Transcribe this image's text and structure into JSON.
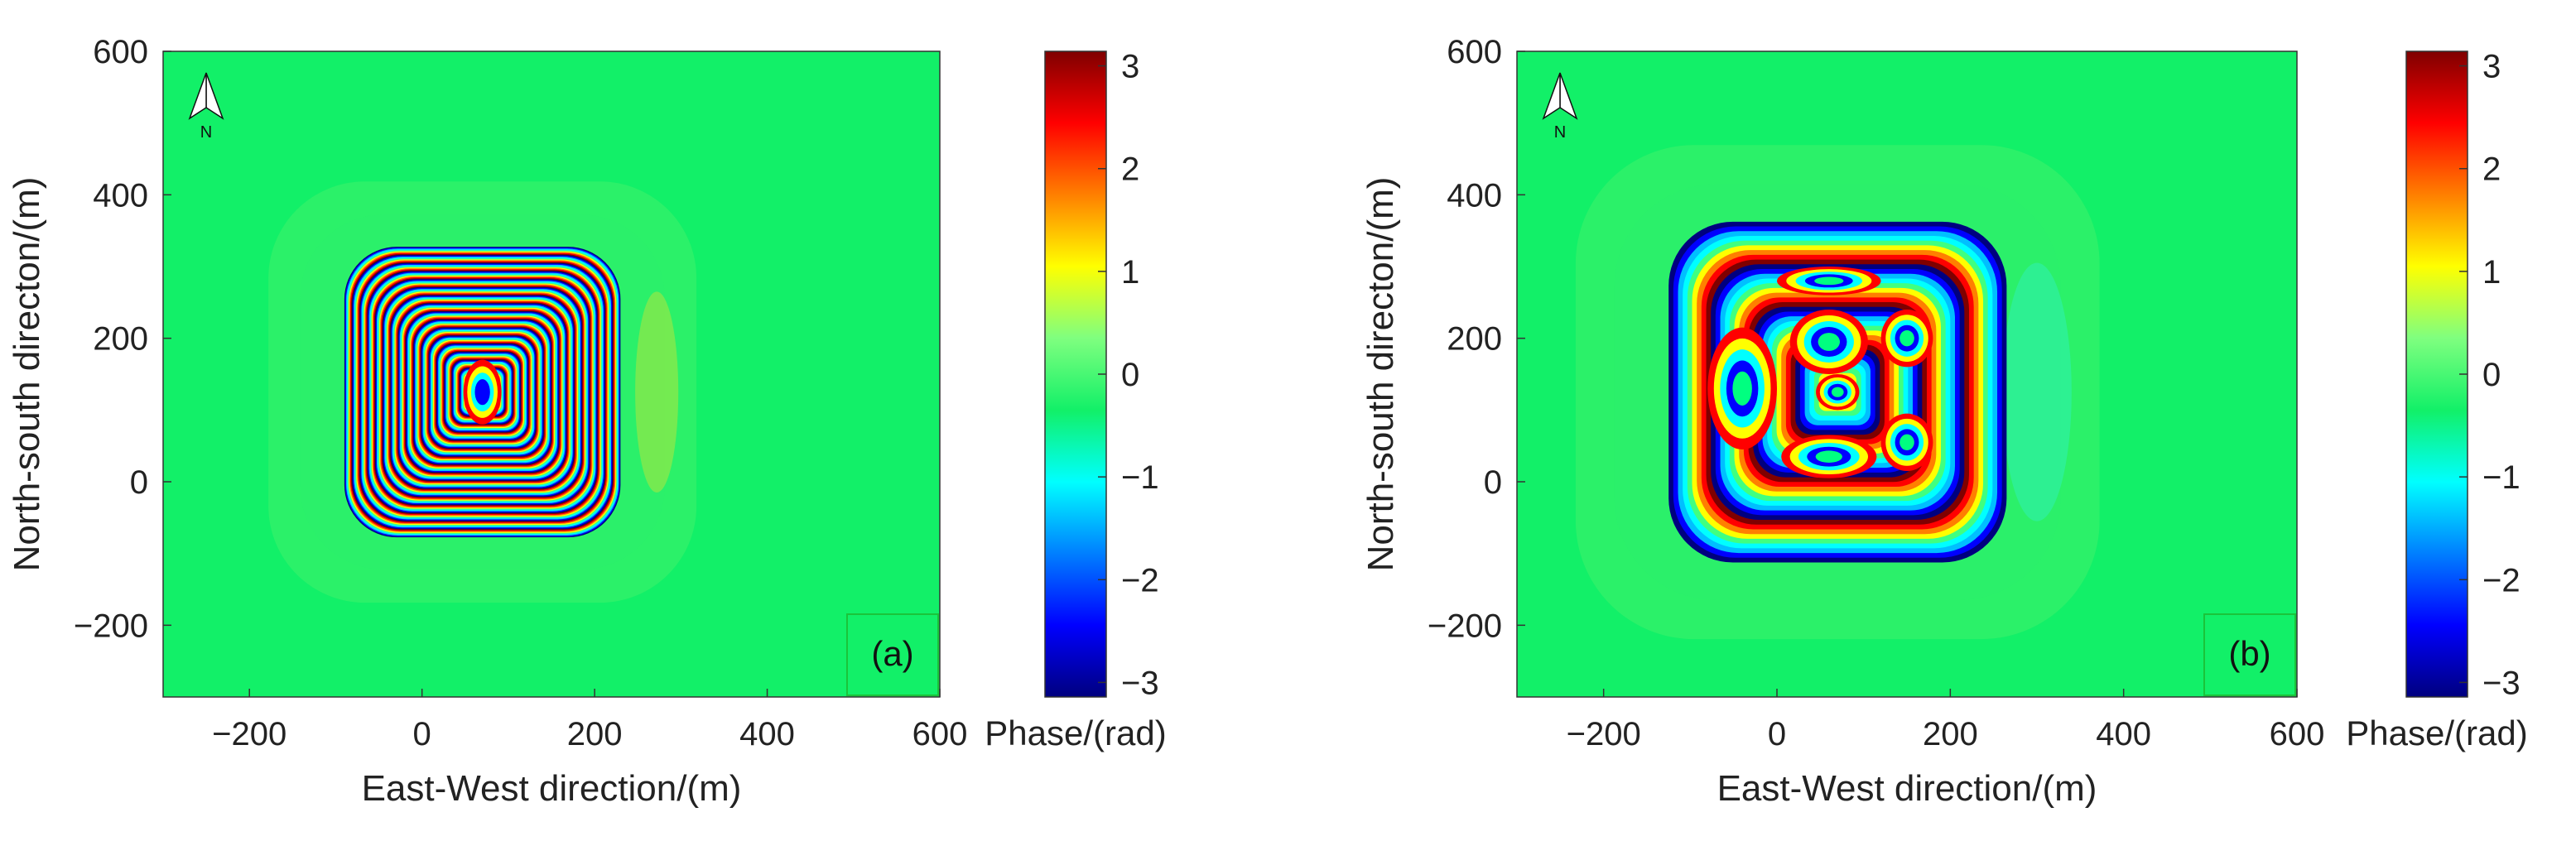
{
  "figure": {
    "colors": {
      "background_phase_zero": "#12f068",
      "frame": "#000000",
      "text": "#222222"
    },
    "colormap": [
      "#00007f",
      "#0000ff",
      "#007fff",
      "#00ffff",
      "#12f068",
      "#7fff7f",
      "#ffff00",
      "#ff7f00",
      "#ff0000",
      "#7f0000"
    ]
  },
  "chart_data": [
    {
      "type": "heatmap",
      "panel_tag": "(a)",
      "xlabel": "East-West direction/(m)",
      "ylabel": "North-south directon/(m)",
      "xlim": [
        -300,
        600
      ],
      "ylim": [
        -300,
        600
      ],
      "xticks": [
        -200,
        0,
        200,
        400,
        600
      ],
      "yticks": [
        -200,
        0,
        200,
        400,
        600
      ],
      "xtick_labels": [
        "−200",
        "0",
        "200",
        "400",
        "600"
      ],
      "ytick_labels": [
        "−200",
        "0",
        "200",
        "400",
        "600"
      ],
      "north_arrow_label": "N",
      "colorbar": {
        "label": "Phase/(rad)",
        "range": [
          -3.14159,
          3.14159
        ],
        "ticks": [
          -3,
          -2,
          -1,
          0,
          1,
          2,
          3
        ],
        "tick_labels": [
          "−3",
          "−2",
          "−1",
          "0",
          "1",
          "2",
          "3"
        ]
      },
      "fringe_region": {
        "x_range_m": [
          -90,
          230
        ],
        "y_range_m": [
          -80,
          325
        ],
        "center_m": [
          70,
          125
        ],
        "fringe_count": 18,
        "description_level": "dense concentric interferometric fringes"
      },
      "side_lobe_m": {
        "x": 272,
        "y": 125,
        "half_width": 25,
        "half_height": 140
      }
    },
    {
      "type": "heatmap",
      "panel_tag": "(b)",
      "xlabel": "East-West direction/(m)",
      "ylabel": "North-south directon/(m)",
      "xlim": [
        -300,
        600
      ],
      "ylim": [
        -300,
        600
      ],
      "xticks": [
        -200,
        0,
        200,
        400,
        600
      ],
      "yticks": [
        -200,
        0,
        200,
        400,
        600
      ],
      "xtick_labels": [
        "−200",
        "0",
        "200",
        "400",
        "600"
      ],
      "ytick_labels": [
        "−200",
        "0",
        "200",
        "400",
        "600"
      ],
      "north_arrow_label": "N",
      "colorbar": {
        "label": "Phase/(rad)",
        "range": [
          -3.14159,
          3.14159
        ],
        "ticks": [
          -3,
          -2,
          -1,
          0,
          1,
          2,
          3
        ],
        "tick_labels": [
          "−3",
          "−2",
          "−1",
          "0",
          "1",
          "2",
          "3"
        ]
      },
      "fringe_region": {
        "x_range_m": [
          -130,
          260
        ],
        "y_range_m": [
          -115,
          360
        ],
        "center_m": [
          70,
          125
        ],
        "fringe_count": 4,
        "description_level": "sparse looping fringes"
      },
      "side_lobe_m": {
        "x": 300,
        "y": 125,
        "half_width": 40,
        "half_height": 180
      }
    }
  ]
}
